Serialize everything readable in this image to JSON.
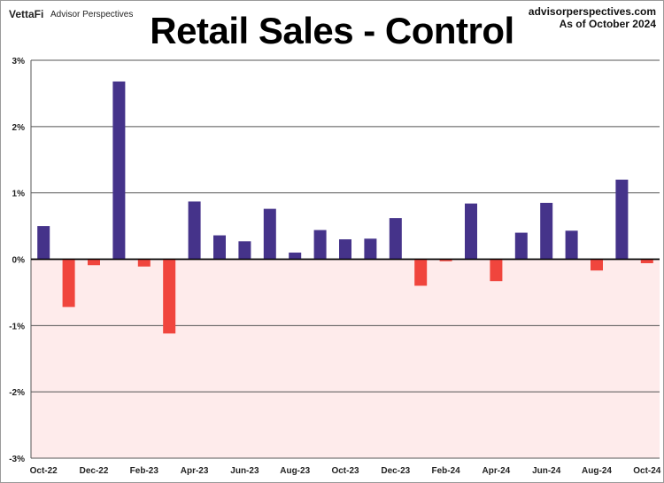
{
  "header": {
    "logo": "VettaFi",
    "brand": "Advisor Perspectives",
    "site": "advisorperspectives.com",
    "as_of": "As of October 2024"
  },
  "colors": {
    "positive": "#45338a",
    "negative": "#f0453d",
    "negative_area": "#feebeb",
    "grid": "#555555"
  },
  "chart_data": {
    "type": "bar",
    "title": "Retail Sales - Control",
    "xlabel": "",
    "ylabel": "",
    "ylim": [
      -3,
      3
    ],
    "yticks": [
      3,
      2,
      1,
      0,
      -1,
      -2,
      -3
    ],
    "ytick_labels": [
      "3%",
      "2%",
      "1%",
      "0%",
      "-1%",
      "-2%",
      "-3%"
    ],
    "categories": [
      "Oct-22",
      "Nov-22",
      "Dec-22",
      "Jan-23",
      "Feb-23",
      "Mar-23",
      "Apr-23",
      "May-23",
      "Jun-23",
      "Jul-23",
      "Aug-23",
      "Sep-23",
      "Oct-23",
      "Nov-23",
      "Dec-23",
      "Jan-24",
      "Feb-24",
      "Mar-24",
      "Apr-24",
      "May-24",
      "Jun-24",
      "Jul-24",
      "Aug-24",
      "Sep-24",
      "Oct-24"
    ],
    "xtick_labels": [
      "Oct-22",
      "Dec-22",
      "Feb-23",
      "Apr-23",
      "Jun-23",
      "Aug-23",
      "Oct-23",
      "Dec-23",
      "Feb-24",
      "Apr-24",
      "Jun-24",
      "Aug-24",
      "Oct-24"
    ],
    "values": [
      0.5,
      -0.72,
      -0.09,
      2.68,
      -0.11,
      -1.12,
      0.87,
      0.36,
      0.27,
      0.76,
      0.1,
      0.44,
      0.3,
      0.31,
      0.62,
      -0.4,
      -0.03,
      0.84,
      -0.33,
      0.4,
      0.85,
      0.43,
      -0.17,
      1.2,
      -0.06
    ],
    "grid": true,
    "legend": "none"
  }
}
